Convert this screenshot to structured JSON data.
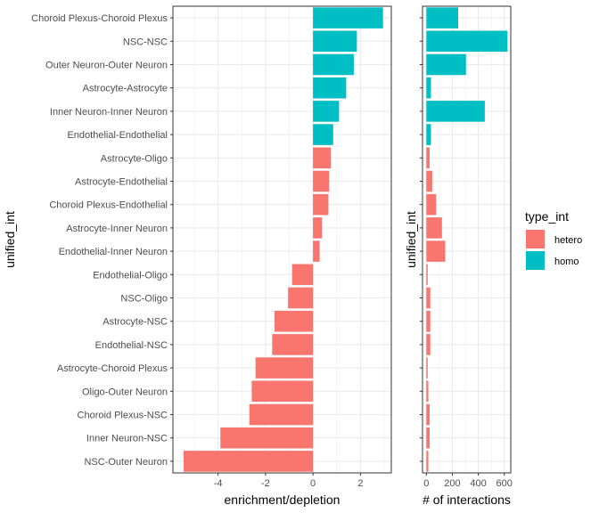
{
  "chart_data": [
    {
      "type": "bar",
      "orientation": "horizontal",
      "xlabel": "enrichment/depletion",
      "ylabel": "unified_int",
      "xlim": [
        -5.9,
        3.3
      ],
      "xticks": [
        -4,
        -2,
        0,
        2
      ],
      "xtick_labels": [
        "-4",
        "-2",
        "0",
        "2"
      ],
      "categories": [
        "Choroid Plexus-Choroid Plexus",
        "NSC-NSC",
        "Outer Neuron-Outer Neuron",
        "Astrocyte-Astrocyte",
        "Inner Neuron-Inner Neuron",
        "Endothelial-Endothelial",
        "Astrocyte-Oligo",
        "Astrocyte-Endothelial",
        "Choroid Plexus-Endothelial",
        "Astrocyte-Inner Neuron",
        "Endothelial-Inner Neuron",
        "Endothelial-Oligo",
        "NSC-Oligo",
        "Astrocyte-NSC",
        "Endothelial-NSC",
        "Astrocyte-Choroid Plexus",
        "Oligo-Outer Neuron",
        "Choroid Plexus-NSC",
        "Inner Neuron-NSC",
        "NSC-Outer Neuron"
      ],
      "values": [
        2.95,
        1.85,
        1.72,
        1.4,
        1.1,
        0.85,
        0.75,
        0.68,
        0.65,
        0.38,
        0.28,
        -0.88,
        -1.05,
        -1.62,
        -1.72,
        -2.42,
        -2.58,
        -2.68,
        -3.9,
        -5.45
      ],
      "groups": [
        "homo",
        "homo",
        "homo",
        "homo",
        "homo",
        "homo",
        "hetero",
        "hetero",
        "hetero",
        "hetero",
        "hetero",
        "hetero",
        "hetero",
        "hetero",
        "hetero",
        "hetero",
        "hetero",
        "hetero",
        "hetero",
        "hetero"
      ],
      "grid": true
    },
    {
      "type": "bar",
      "orientation": "horizontal",
      "xlabel": "# of interactions",
      "ylabel": "unified_int",
      "xlim": [
        -30,
        650
      ],
      "xticks": [
        0,
        200,
        400,
        600
      ],
      "xtick_labels": [
        "0",
        "200",
        "400",
        "600"
      ],
      "values": [
        245,
        625,
        305,
        35,
        450,
        35,
        25,
        45,
        75,
        120,
        145,
        10,
        30,
        30,
        30,
        10,
        15,
        25,
        25,
        15
      ],
      "groups": [
        "homo",
        "homo",
        "homo",
        "homo",
        "homo",
        "homo",
        "hetero",
        "hetero",
        "hetero",
        "hetero",
        "hetero",
        "hetero",
        "hetero",
        "hetero",
        "hetero",
        "hetero",
        "hetero",
        "hetero",
        "hetero",
        "hetero"
      ],
      "grid": true
    }
  ],
  "legend": {
    "title": "type_int",
    "items": [
      {
        "label": "hetero",
        "color": "#F8766D"
      },
      {
        "label": "homo",
        "color": "#00BFC4"
      }
    ],
    "placement": "right"
  },
  "colors": {
    "hetero": "#F8766D",
    "homo": "#00BFC4"
  }
}
